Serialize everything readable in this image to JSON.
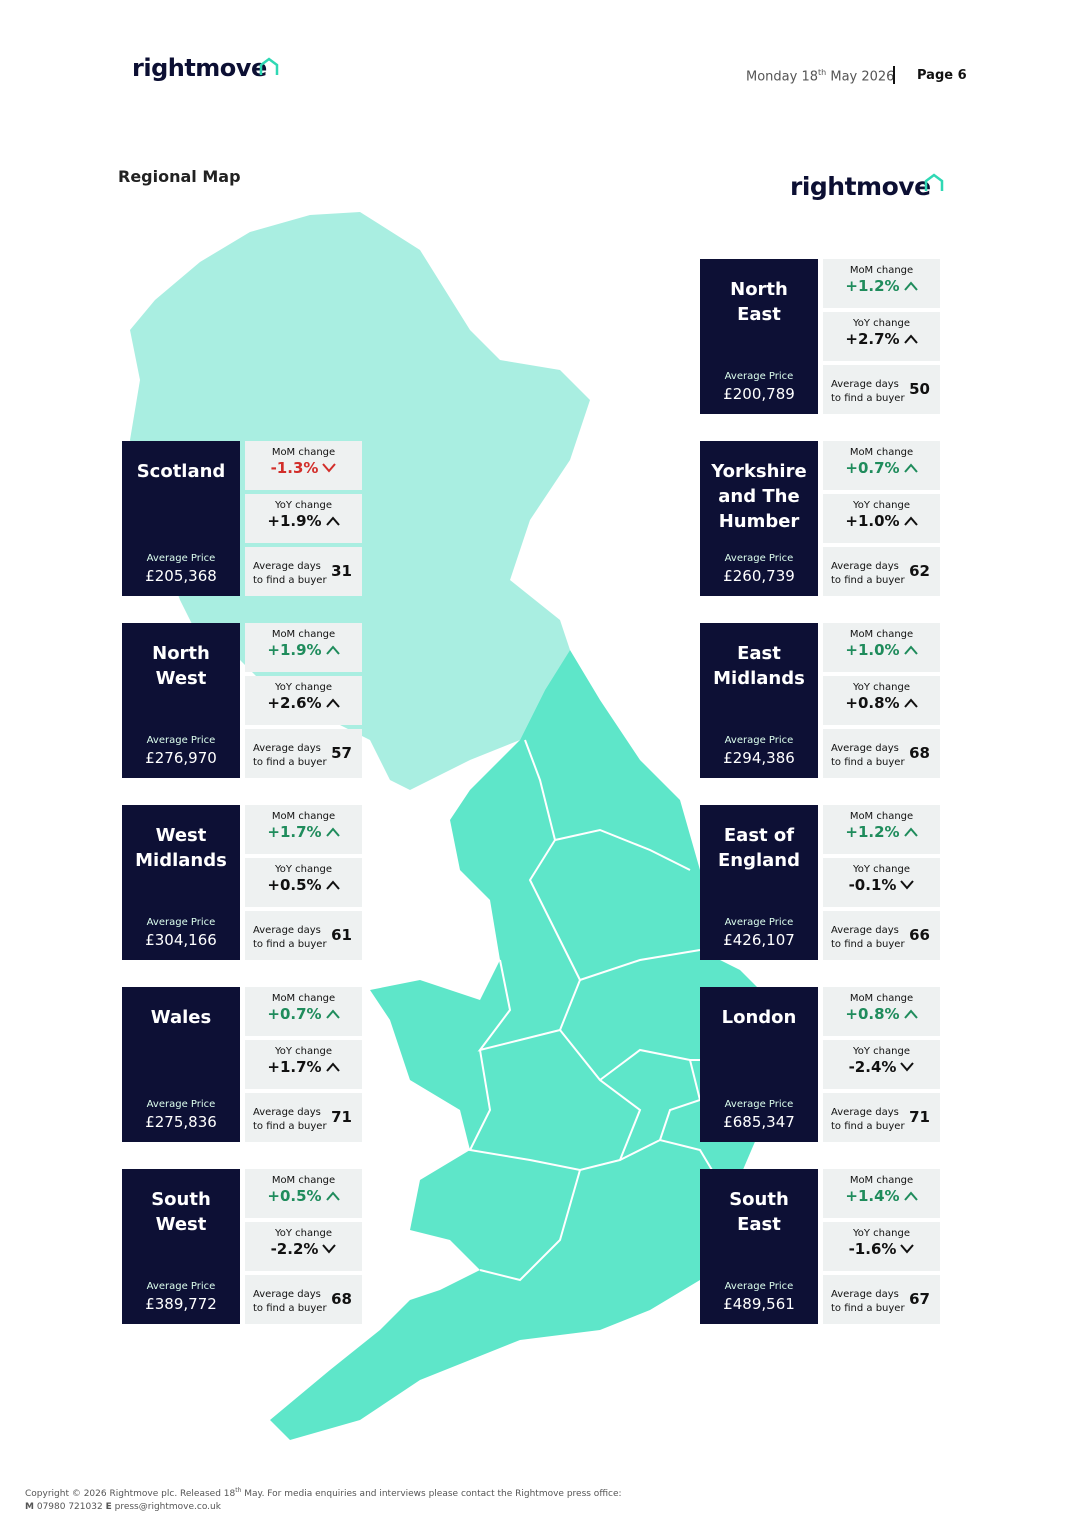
{
  "header": {
    "logo": "rightmove",
    "date_main": "Monday 18",
    "date_sup": "th",
    "date_rest": "May 2026",
    "page": "Page 6"
  },
  "title": "Regional Map",
  "map_logo": "rightmove",
  "labels": {
    "mom": "MoM change",
    "yoy": "YoY change",
    "avg_price": "Average Price",
    "days_1": "Average days",
    "days_2": "to find a buyer"
  },
  "regions": [
    {
      "name": "North East",
      "price": "£200,789",
      "mom": "+1.2%",
      "yoy": "+2.7%",
      "days": 50
    },
    {
      "name": "Scotland",
      "price": "£205,368",
      "mom": "-1.3%",
      "yoy": "+1.9%",
      "days": 31
    },
    {
      "name": "Yorkshire and The Humber",
      "price": "£260,739",
      "mom": "+0.7%",
      "yoy": "+1.0%",
      "days": 62
    },
    {
      "name": "North West",
      "price": "£276,970",
      "mom": "+1.9%",
      "yoy": "+2.6%",
      "days": 57
    },
    {
      "name": "East Midlands",
      "price": "£294,386",
      "mom": "+1.0%",
      "yoy": "+0.8%",
      "days": 68
    },
    {
      "name": "West Midlands",
      "price": "£304,166",
      "mom": "+1.7%",
      "yoy": "+0.5%",
      "days": 61
    },
    {
      "name": "East of England",
      "price": "£426,107",
      "mom": "+1.2%",
      "yoy": "-0.1%",
      "days": 66
    },
    {
      "name": "Wales",
      "price": "£275,836",
      "mom": "+0.7%",
      "yoy": "+1.7%",
      "days": 71
    },
    {
      "name": "London",
      "price": "£685,347",
      "mom": "+0.8%",
      "yoy": "-2.4%",
      "days": 71
    },
    {
      "name": "South West",
      "price": "£389,772",
      "mom": "+0.5%",
      "yoy": "-2.2%",
      "days": 68
    },
    {
      "name": "South East",
      "price": "£489,561",
      "mom": "+1.4%",
      "yoy": "-1.6%",
      "days": 67
    }
  ],
  "footer": {
    "line1_a": "Copyright © 2026 Rightmove plc. Released 18",
    "line1_sup": "th",
    "line1_b": " May. For media enquiries and interviews please contact the Rightmove press office:",
    "m_label": "M",
    "phone": "07980 721032",
    "e_label": "E",
    "email": "press@rightmove.co.uk"
  }
}
